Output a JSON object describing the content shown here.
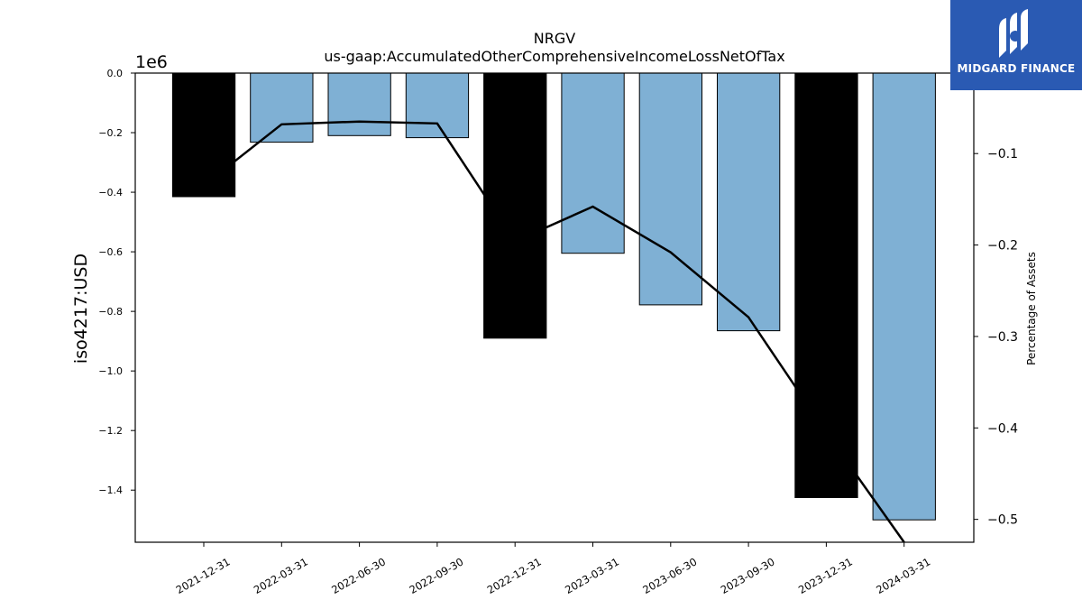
{
  "chart_data": {
    "type": "bar",
    "title": "NRGV",
    "subtitle": "us-gaap:AccumulatedOtherComprehensiveIncomeLossNetOfTax",
    "ylabel": "iso4217:USD",
    "y2label": "Percentage of Assets",
    "yoffset_label": "1e6",
    "categories": [
      "2021-12-31",
      "2022-03-31",
      "2022-06-30",
      "2022-09-30",
      "2022-12-31",
      "2023-03-31",
      "2023-06-30",
      "2023-09-30",
      "2023-12-31",
      "2024-03-31"
    ],
    "values": [
      -415000,
      -232000,
      -210000,
      -217000,
      -890000,
      -605000,
      -778000,
      -865000,
      -1425000,
      -1500000
    ],
    "bar_colors": [
      "#000000",
      "#7fb0d4",
      "#7fb0d4",
      "#7fb0d4",
      "#000000",
      "#7fb0d4",
      "#7fb0d4",
      "#7fb0d4",
      "#000000",
      "#7fb0d4"
    ],
    "ylim": [
      -1575000,
      0
    ],
    "yticks": [
      0,
      -200000,
      -400000,
      -600000,
      -800000,
      -1000000,
      -1200000,
      -1400000
    ],
    "ytick_labels": [
      "0.0",
      "−0.2",
      "−0.4",
      "−0.6",
      "−0.8",
      "−1.0",
      "−1.2",
      "−1.4"
    ],
    "line_series": {
      "values": [
        -0.135,
        -0.068,
        -0.065,
        -0.067,
        -0.196,
        -0.158,
        -0.208,
        -0.279,
        -0.405,
        -0.525
      ]
    },
    "y2lim": [
      -0.525,
      -0.012
    ],
    "y2ticks": [
      -0.1,
      -0.2,
      -0.3,
      -0.4,
      -0.5
    ],
    "y2tick_labels": [
      "−0.1",
      "−0.2",
      "−0.3",
      "−0.4",
      "−0.5"
    ],
    "grid": false,
    "legend": "none"
  },
  "logo": {
    "text": "MIDGARD FINANCE"
  }
}
